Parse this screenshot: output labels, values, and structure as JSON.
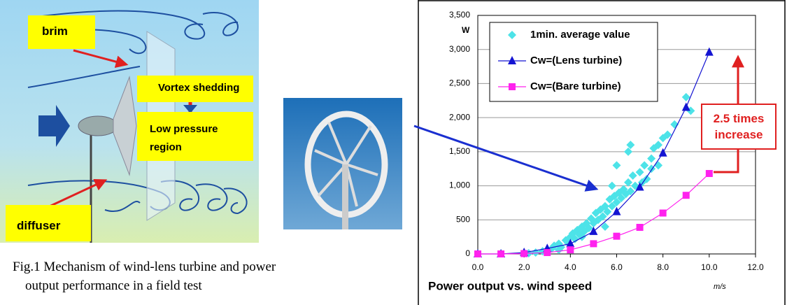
{
  "diagram": {
    "labels": [
      "brim",
      "Vortex shedding",
      "Low pressure region",
      "diffuser"
    ]
  },
  "caption": "Fig.1 Mechanism of wind-lens turbine and power output performance in a field test",
  "chart_data": {
    "type": "line",
    "title": "Power output vs. wind speed",
    "y_unit": "W",
    "x_unit": "m/s",
    "annotation": "2.5 times increase",
    "legend": "upper left",
    "grid": true,
    "xlim": [
      0,
      12
    ],
    "xticks": [
      {
        "value": 0,
        "label": "0.0"
      },
      {
        "value": 2,
        "label": "2.0"
      },
      {
        "value": 4,
        "label": "4.0"
      },
      {
        "value": 6,
        "label": "6.0"
      },
      {
        "value": 8,
        "label": "8.0"
      },
      {
        "value": 10,
        "label": "10.0"
      },
      {
        "value": 12,
        "label": "12.0"
      }
    ],
    "ylim": [
      0,
      3500
    ],
    "yticks": [
      0,
      500,
      {
        "value": 1000,
        "label": "1,000"
      },
      {
        "value": 1500,
        "label": "1,500"
      },
      {
        "value": 2000,
        "label": "2,000"
      },
      {
        "value": 2500,
        "label": "2,500"
      },
      {
        "value": 3000,
        "label": "3,000"
      },
      {
        "value": 3500,
        "label": "3,500"
      }
    ],
    "series": [
      {
        "name": "1min. average value",
        "color": "#4de3e8",
        "marker": "diamond",
        "connect": false,
        "x": [
          2.2,
          2.5,
          2.8,
          3.0,
          3.2,
          3.3,
          3.5,
          3.6,
          3.8,
          3.9,
          4.0,
          4.1,
          4.2,
          4.3,
          4.4,
          4.5,
          4.6,
          4.7,
          4.8,
          4.9,
          5.0,
          5.1,
          5.2,
          5.3,
          5.4,
          5.5,
          5.6,
          5.7,
          5.8,
          5.9,
          6.0,
          6.1,
          6.2,
          6.3,
          6.4,
          6.5,
          6.6,
          6.7,
          6.8,
          7.0,
          7.1,
          7.2,
          7.3,
          7.5,
          6.6,
          6.5,
          6.0,
          5.8,
          7.5,
          7.6,
          7.8,
          8.0,
          8.2,
          8.5,
          9.0,
          9.2,
          5.5,
          4.5,
          3.5,
          7.8
        ],
        "values": [
          10,
          20,
          40,
          60,
          80,
          120,
          150,
          100,
          200,
          160,
          250,
          300,
          220,
          350,
          280,
          400,
          330,
          450,
          380,
          520,
          450,
          600,
          500,
          650,
          550,
          700,
          620,
          800,
          700,
          850,
          760,
          900,
          820,
          950,
          880,
          1050,
          920,
          1150,
          1000,
          1200,
          1050,
          1300,
          1100,
          1250,
          1600,
          1500,
          1300,
          1000,
          1400,
          1550,
          1600,
          1700,
          1750,
          1900,
          2300,
          2100,
          400,
          250,
          60,
          1300
        ]
      },
      {
        "name": "Cw=(Lens turbine)",
        "color": "#1414d2",
        "marker": "triangle",
        "connect": true,
        "x": [
          0,
          1,
          2,
          3,
          4,
          5,
          6,
          7,
          8,
          9,
          10
        ],
        "values": [
          0,
          0,
          20,
          80,
          150,
          330,
          620,
          980,
          1480,
          2150,
          2960
        ]
      },
      {
        "name": "Cw=(Bare turbine)",
        "color": "#ff22ee",
        "marker": "square",
        "connect": true,
        "x": [
          0,
          1,
          2,
          3,
          4,
          5,
          6,
          7,
          8,
          9,
          10
        ],
        "values": [
          0,
          0,
          5,
          20,
          60,
          150,
          260,
          390,
          600,
          860,
          1180
        ]
      }
    ]
  }
}
